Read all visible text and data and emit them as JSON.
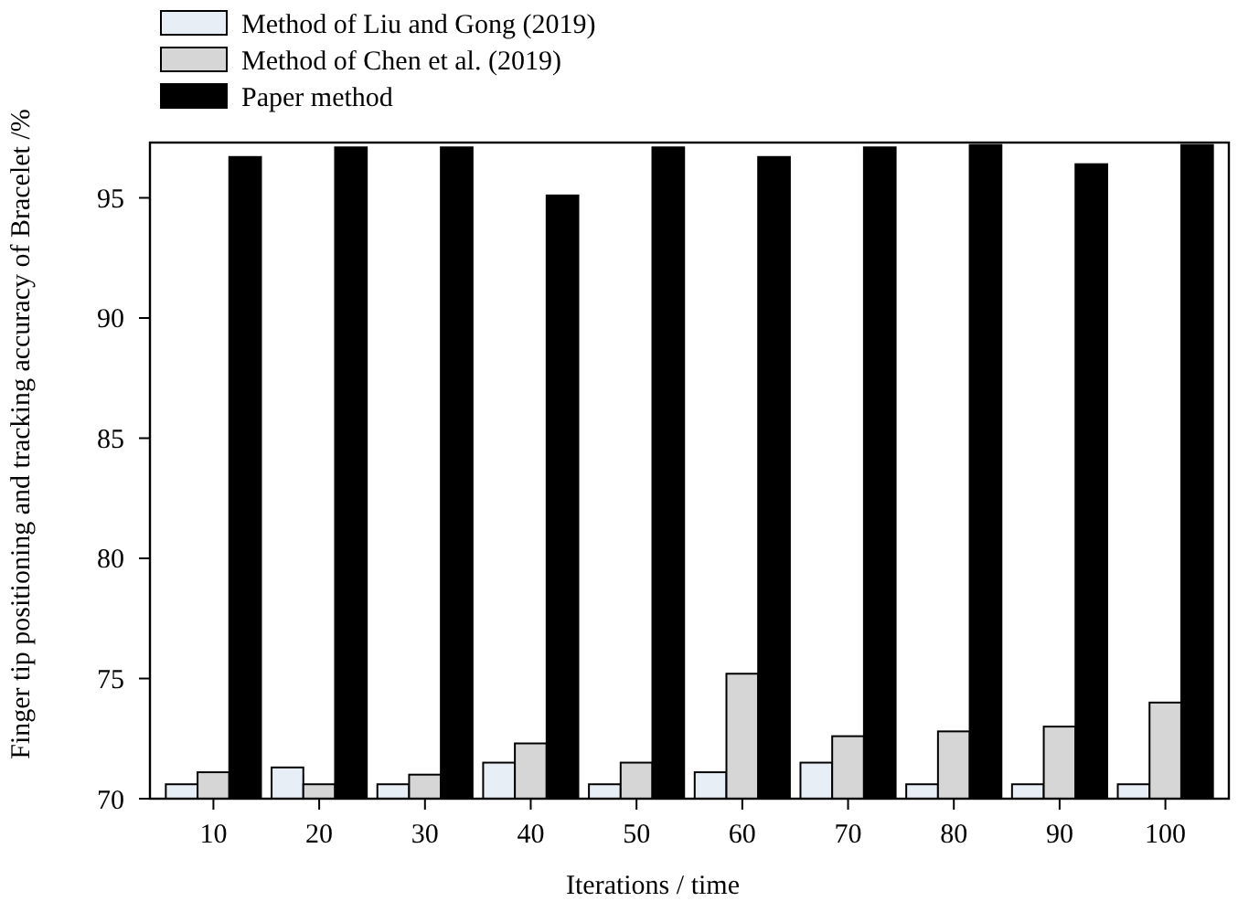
{
  "chart_data": {
    "type": "bar",
    "xlabel": "Iterations / time",
    "ylabel": "Finger tip positioning and tracking accuracy of Bracelet /%",
    "categories": [
      "10",
      "20",
      "30",
      "40",
      "50",
      "60",
      "70",
      "80",
      "90",
      "100"
    ],
    "series": [
      {
        "name": "Method of Liu and Gong (2019)",
        "color": "#e8eef6",
        "values": [
          70.6,
          71.3,
          70.6,
          71.5,
          70.6,
          71.1,
          71.5,
          70.6,
          70.6,
          70.6
        ]
      },
      {
        "name": "Method of Chen et al. (2019)",
        "color": "#d6d6d6",
        "values": [
          71.1,
          70.6,
          71.0,
          72.3,
          71.5,
          75.2,
          72.6,
          72.8,
          73.0,
          74.0
        ]
      },
      {
        "name": "Paper method",
        "color": "#000000",
        "values": [
          96.7,
          97.1,
          97.1,
          95.1,
          97.1,
          96.7,
          97.1,
          97.2,
          96.4,
          97.2
        ]
      }
    ],
    "ylim": [
      70,
      97.3
    ],
    "yticks": [
      70,
      75,
      80,
      85,
      90,
      95
    ],
    "grid": false,
    "legend": "top left"
  }
}
